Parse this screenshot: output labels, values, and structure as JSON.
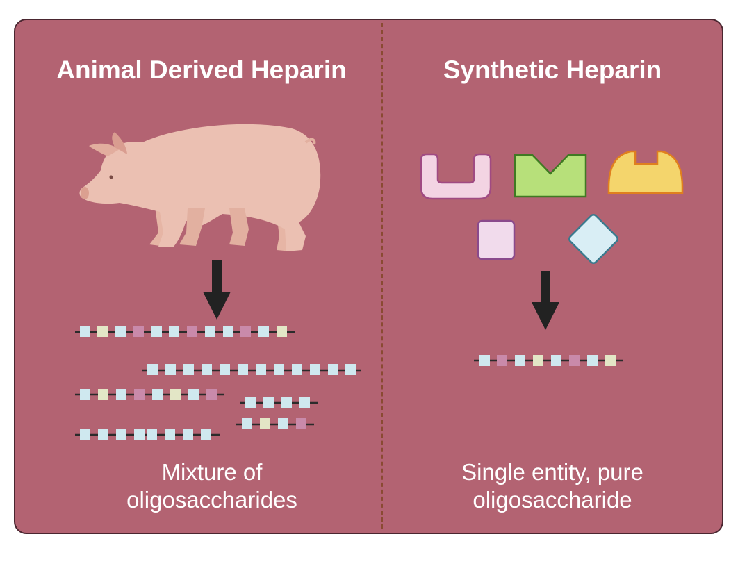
{
  "left": {
    "title": "Animal Derived Heparin",
    "caption_line1": "Mixture of",
    "caption_line2": "oligosaccharides",
    "source_icon": "pig-icon"
  },
  "right": {
    "title": "Synthetic Heparin",
    "caption_line1": "Single entity, pure",
    "caption_line2": "oligosaccharide",
    "building_blocks": [
      "u-shape-block-icon",
      "v-notch-block-icon",
      "dome-block-icon",
      "square-block-icon",
      "diamond-block-icon"
    ]
  },
  "colors": {
    "panel": "#b36372",
    "blue_unit": "#cfe8ef",
    "cream_unit": "#e3e6c6",
    "purple_unit": "#c98aaa",
    "arrow": "#222222",
    "pink_block": "#f3d4e3",
    "green_block": "#b7e07a",
    "yellow_block": "#f4d56c",
    "lavender_block": "#f1dbec",
    "lightblue_block": "#d9eef5"
  }
}
